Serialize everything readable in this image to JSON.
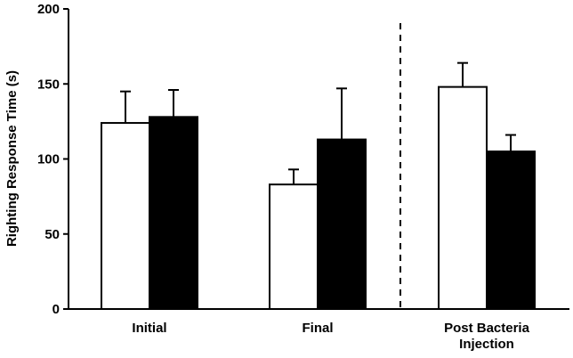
{
  "chart_data": {
    "type": "bar",
    "title": "",
    "xlabel": "",
    "ylabel": "Righting Response Time (s)",
    "ylim": [
      0,
      200
    ],
    "yticks": [
      0,
      50,
      100,
      150,
      200
    ],
    "categories": [
      "Initial",
      "Final",
      "Post Bacteria Injection"
    ],
    "category_label_lines": [
      [
        "Initial"
      ],
      [
        "Final"
      ],
      [
        "Post Bacteria",
        "Injection"
      ]
    ],
    "series": [
      {
        "fill": "#ffffff",
        "values": [
          124,
          83,
          148
        ],
        "errors": [
          21,
          10,
          16
        ]
      },
      {
        "fill": "#000000",
        "values": [
          128,
          113,
          105
        ],
        "errors": [
          18,
          34,
          11
        ]
      }
    ],
    "divider_after_category": 1,
    "grid": false,
    "legend": "none"
  }
}
